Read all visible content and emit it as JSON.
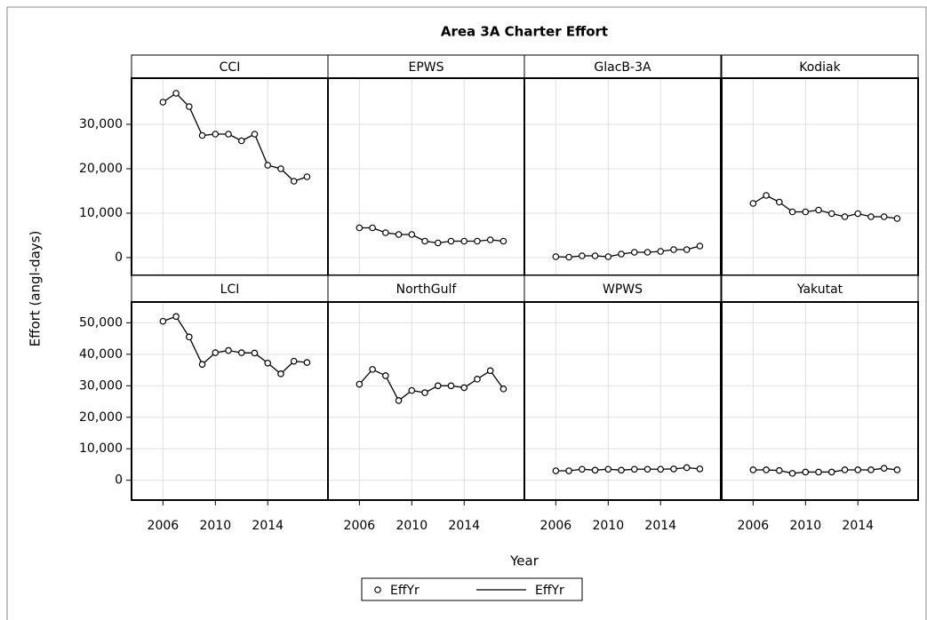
{
  "chart_data": {
    "type": "line",
    "title": "Area 3A Charter Effort",
    "x_label": "Year",
    "y_label": "Effort (angl-days)",
    "color": "#000000",
    "grid": true,
    "x": [
      2006,
      2007,
      2008,
      2009,
      2010,
      2011,
      2012,
      2013,
      2014,
      2015,
      2016,
      2017
    ],
    "xlim": [
      2003.6,
      2018.6
    ],
    "xticks": [
      2006,
      2010,
      2014
    ],
    "legend": [
      "EffYr",
      "EffYr"
    ],
    "rows": [
      {
        "ylim": [
          -4000,
          40400
        ],
        "yticks": [
          0,
          {
            "value": 10000,
            "label": "10,000"
          },
          {
            "value": 20000,
            "label": "20,000"
          },
          {
            "value": 30000,
            "label": "30,000"
          }
        ],
        "series": [
          {
            "name": "CCI",
            "values": [
              35000,
              37000,
              34000,
              27500,
              27800,
              27800,
              26300,
              27800,
              20800,
              20000,
              17200,
              18200
            ]
          },
          {
            "name": "EPWS",
            "values": [
              6700,
              6700,
              5600,
              5200,
              5200,
              3700,
              3300,
              3700,
              3700,
              3700,
              4000,
              3700
            ]
          },
          {
            "name": "GlacB-3A",
            "values": [
              200,
              100,
              400,
              400,
              200,
              800,
              1200,
              1200,
              1400,
              1800,
              1800,
              2600
            ]
          },
          {
            "name": "Kodiak",
            "values": [
              12200,
              14000,
              12500,
              10300,
              10300,
              10700,
              9900,
              9200,
              9900,
              9200,
              9200,
              8800
            ]
          }
        ]
      },
      {
        "ylim": [
          -6300,
          56600
        ],
        "yticks": [
          0,
          {
            "value": 10000,
            "label": "10,000"
          },
          {
            "value": 20000,
            "label": "20,000"
          },
          {
            "value": 30000,
            "label": "30,000"
          },
          {
            "value": 40000,
            "label": "40,000"
          },
          {
            "value": 50000,
            "label": "50,000"
          }
        ],
        "series": [
          {
            "name": "LCI",
            "values": [
              50500,
              52000,
              45500,
              36800,
              40500,
              41200,
              40500,
              40400,
              37200,
              33800,
              37800,
              37400
            ]
          },
          {
            "name": "NorthGulf",
            "values": [
              30500,
              35200,
              33200,
              25300,
              28500,
              27800,
              30000,
              30000,
              29400,
              32100,
              34800,
              29000
            ]
          },
          {
            "name": "WPWS",
            "values": [
              3000,
              3000,
              3500,
              3200,
              3500,
              3200,
              3500,
              3500,
              3500,
              3600,
              4000,
              3600
            ]
          },
          {
            "name": "Yakutat",
            "values": [
              3300,
              3300,
              3100,
              2200,
              2600,
              2600,
              2600,
              3300,
              3300,
              3300,
              3800,
              3300
            ]
          }
        ]
      }
    ]
  }
}
